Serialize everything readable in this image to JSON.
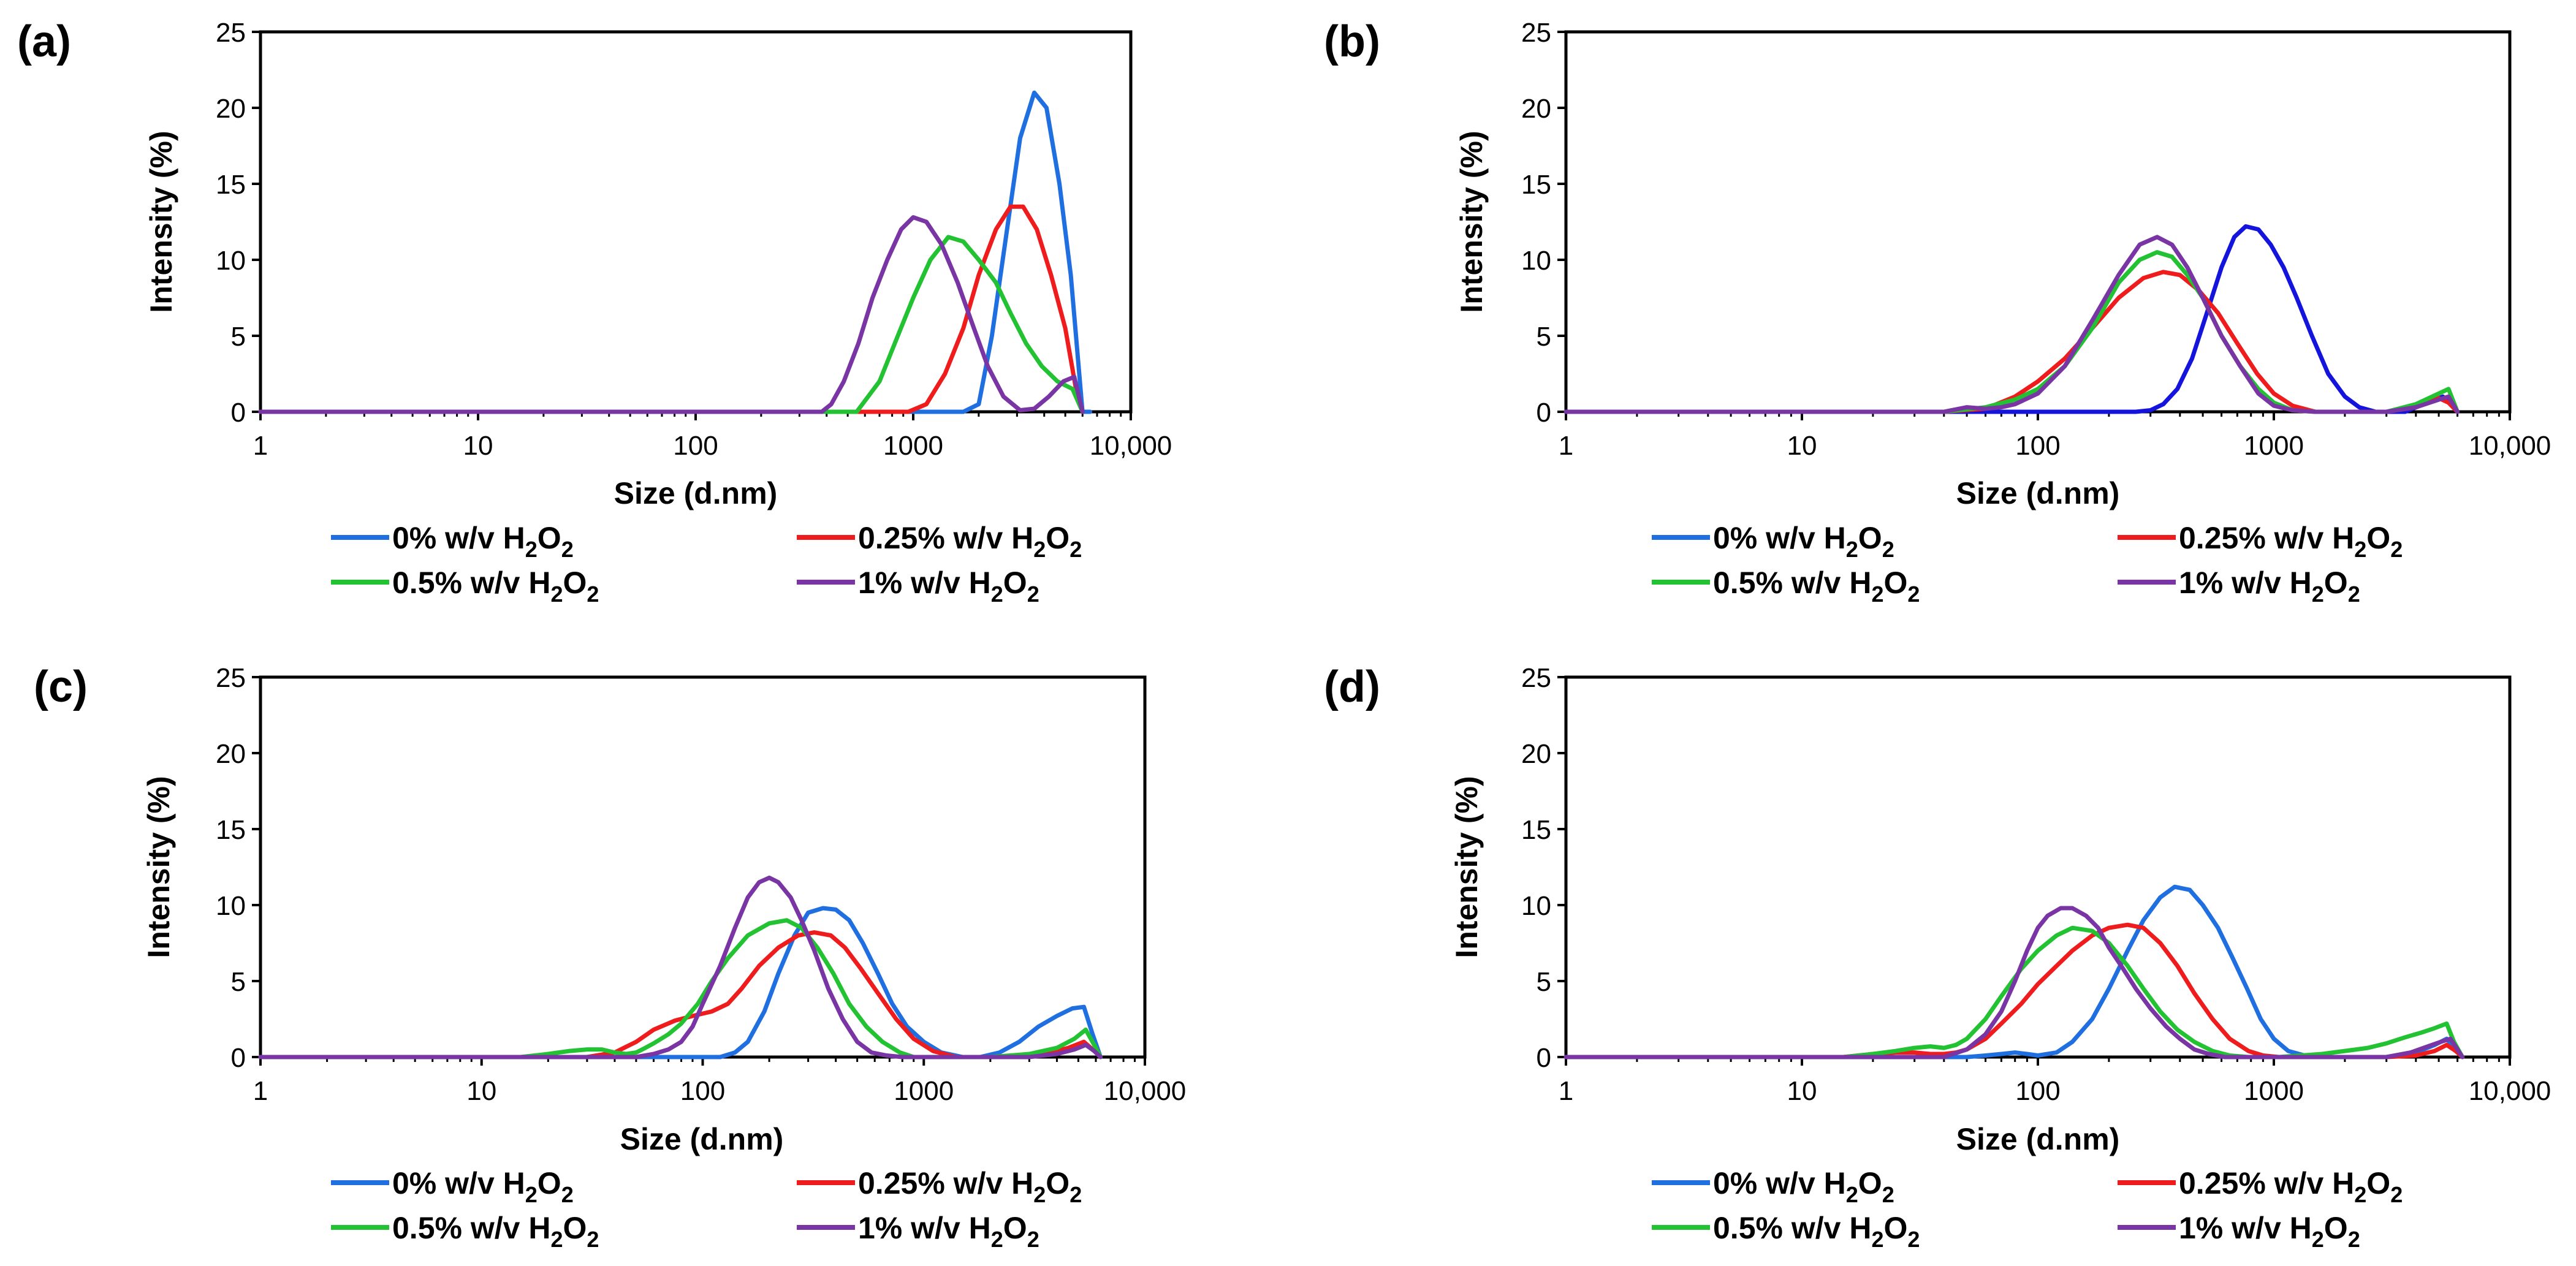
{
  "figure": {
    "legend_entries": [
      {
        "label": "0% w/v H",
        "sub1": "2",
        "mid": "O",
        "sub2": "2"
      },
      {
        "label": "0.25% w/v H",
        "sub1": "2",
        "mid": "O",
        "sub2": "2"
      },
      {
        "label": "0.5% w/v H",
        "sub1": "2",
        "mid": "O",
        "sub2": "2"
      },
      {
        "label": "1% w/v  H",
        "sub1": "2",
        "mid": "O",
        "sub2": "2"
      }
    ]
  },
  "chart_data": [
    {
      "panel": "(a)",
      "type": "line",
      "xscale": "log",
      "xlim": [
        1,
        10000
      ],
      "ylim": [
        0,
        25
      ],
      "xticks": [
        1,
        10,
        100,
        1000,
        10000
      ],
      "xtick_labels": [
        "1",
        "10",
        "100",
        "1000",
        "10,000"
      ],
      "yticks": [
        0,
        5,
        10,
        15,
        20,
        25
      ],
      "ytick_labels": [
        "0",
        "5",
        "10",
        "15",
        "20",
        "25"
      ],
      "xlabel": "Size (d.nm)",
      "ylabel": "Intensity (%)",
      "series": [
        {
          "name": "0% w/v H2O2",
          "color": "#1f6fe0",
          "x": [
            1,
            1700,
            2000,
            2300,
            2700,
            3100,
            3600,
            4100,
            4700,
            5300,
            6000,
            6500
          ],
          "y": [
            0,
            0,
            0.5,
            5,
            12,
            18,
            21,
            20,
            15,
            9,
            0,
            0
          ]
        },
        {
          "name": "0.25% w/v H2O2",
          "color": "#ee1c1c",
          "x": [
            1,
            950,
            1150,
            1400,
            1700,
            2000,
            2400,
            2800,
            3200,
            3700,
            4300,
            5000,
            5600,
            6000
          ],
          "y": [
            0,
            0,
            0.5,
            2.5,
            5.5,
            9,
            12,
            13.5,
            13.5,
            12,
            9,
            5.5,
            1.5,
            0
          ]
        },
        {
          "name": "0.5% w/v H2O2",
          "color": "#22c232",
          "x": [
            1,
            550,
            700,
            850,
            1000,
            1200,
            1450,
            1700,
            2000,
            2400,
            2800,
            3300,
            3900,
            4600,
            5400,
            6000
          ],
          "y": [
            0,
            0,
            2,
            5,
            7.5,
            10,
            11.5,
            11.2,
            10,
            8.5,
            6.5,
            4.5,
            3,
            2,
            1.5,
            0
          ]
        },
        {
          "name": "1% w/v H2O2",
          "color": "#7a35a5",
          "x": [
            1,
            380,
            420,
            480,
            560,
            650,
            760,
            880,
            1000,
            1150,
            1350,
            1600,
            1900,
            2200,
            2600,
            3100,
            3600,
            4200,
            4900,
            5500,
            6000
          ],
          "y": [
            0,
            0,
            0.5,
            2,
            4.5,
            7.5,
            10,
            12,
            12.8,
            12.5,
            11,
            8.5,
            5.5,
            3,
            1,
            0.1,
            0.2,
            1,
            2,
            2.3,
            0
          ]
        }
      ]
    },
    {
      "panel": "(b)",
      "type": "line",
      "xscale": "log",
      "xlim": [
        1,
        10000
      ],
      "ylim": [
        0,
        25
      ],
      "xticks": [
        1,
        10,
        100,
        1000,
        10000
      ],
      "xtick_labels": [
        "1",
        "10",
        "100",
        "1000",
        "10,000"
      ],
      "yticks": [
        0,
        5,
        10,
        15,
        20,
        25
      ],
      "ytick_labels": [
        "0",
        "5",
        "10",
        "15",
        "20",
        "25"
      ],
      "xlabel": "Size (d.nm)",
      "ylabel": "Intensity (%)",
      "series": [
        {
          "name": "0% w/v H2O2",
          "color": "#1414dc",
          "x": [
            1,
            260,
            300,
            340,
            390,
            450,
            520,
            600,
            680,
            760,
            860,
            970,
            1100,
            1250,
            1450,
            1700,
            2000,
            2300,
            2700,
            3100,
            3600,
            4300,
            5200,
            5700,
            6000
          ],
          "y": [
            0,
            0,
            0.1,
            0.5,
            1.5,
            3.5,
            6.5,
            9.5,
            11.5,
            12.2,
            12,
            11,
            9.5,
            7.5,
            5,
            2.5,
            1,
            0.3,
            0,
            0,
            0,
            0.5,
            1,
            0.5,
            0
          ]
        },
        {
          "name": "0.25% w/v H2O2",
          "color": "#ee1c1c",
          "x": [
            1,
            40,
            60,
            80,
            100,
            130,
            170,
            220,
            280,
            340,
            400,
            480,
            580,
            700,
            850,
            1000,
            1200,
            1500,
            2000,
            3000,
            4000,
            5000,
            5500,
            6000
          ],
          "y": [
            0,
            0,
            0.2,
            1,
            2,
            3.5,
            5.5,
            7.5,
            8.8,
            9.2,
            9,
            8,
            6.5,
            4.5,
            2.5,
            1.2,
            0.4,
            0,
            0,
            0,
            0.3,
            0.9,
            0.6,
            0
          ]
        },
        {
          "name": "0.5% w/v H2O2",
          "color": "#22c232",
          "x": [
            1,
            40,
            60,
            80,
            100,
            130,
            170,
            220,
            270,
            320,
            370,
            430,
            500,
            600,
            720,
            860,
            1000,
            1200,
            1500,
            2000,
            3000,
            4000,
            5000,
            5500,
            6000
          ],
          "y": [
            0,
            0,
            0.3,
            0.8,
            1.5,
            3,
            5.5,
            8.5,
            10,
            10.5,
            10.2,
            9,
            7.5,
            5,
            3,
            1.5,
            0.6,
            0.1,
            0,
            0,
            0,
            0.5,
            1.2,
            1.5,
            0
          ]
        },
        {
          "name": "1% w/v H2O2",
          "color": "#7a35a5",
          "x": [
            1,
            40,
            50,
            60,
            70,
            80,
            100,
            130,
            170,
            220,
            270,
            320,
            370,
            430,
            500,
            600,
            720,
            860,
            1000,
            1200,
            1500,
            2000,
            3000,
            4000,
            5000,
            5500,
            6000
          ],
          "y": [
            0,
            0,
            0.3,
            0.2,
            0.3,
            0.5,
            1.2,
            3,
            6,
            9,
            11,
            11.5,
            11,
            9.5,
            7.5,
            5,
            3,
            1.2,
            0.4,
            0.1,
            0,
            0,
            0,
            0.3,
            0.8,
            1,
            0
          ]
        }
      ]
    },
    {
      "panel": "(c)",
      "type": "line",
      "xscale": "log",
      "xlim": [
        1,
        10000
      ],
      "ylim": [
        0,
        25
      ],
      "xticks": [
        1,
        10,
        100,
        1000,
        10000
      ],
      "xtick_labels": [
        "1",
        "10",
        "100",
        "1000",
        "10,000"
      ],
      "yticks": [
        0,
        5,
        10,
        15,
        20,
        25
      ],
      "ytick_labels": [
        "0",
        "5",
        "10",
        "15",
        "20",
        "25"
      ],
      "xlabel": "Size (d.nm)",
      "ylabel": "Intensity (%)",
      "series": [
        {
          "name": "0% w/v H2O2",
          "color": "#1f6fe0",
          "x": [
            1,
            120,
            140,
            160,
            190,
            220,
            260,
            300,
            350,
            400,
            460,
            530,
            620,
            720,
            840,
            1000,
            1200,
            1500,
            1800,
            2200,
            2700,
            3300,
            4000,
            4700,
            5300,
            5800,
            6300
          ],
          "y": [
            0,
            0,
            0.3,
            1,
            3,
            5.5,
            8,
            9.5,
            9.8,
            9.7,
            9,
            7.5,
            5.5,
            3.5,
            2,
            1,
            0.3,
            0,
            0,
            0.3,
            1,
            2,
            2.7,
            3.2,
            3.3,
            1.5,
            0
          ]
        },
        {
          "name": "0.25% w/v H2O2",
          "color": "#ee1c1c",
          "x": [
            1,
            30,
            40,
            50,
            60,
            75,
            90,
            110,
            130,
            150,
            180,
            220,
            270,
            320,
            380,
            440,
            520,
            620,
            750,
            900,
            1100,
            1400,
            1800,
            2500,
            3500,
            4500,
            5300,
            5800,
            6300
          ],
          "y": [
            0,
            0,
            0.3,
            1,
            1.8,
            2.4,
            2.7,
            3,
            3.5,
            4.5,
            6,
            7.2,
            8,
            8.2,
            8,
            7.2,
            5.8,
            4.2,
            2.5,
            1.2,
            0.4,
            0,
            0,
            0,
            0.2,
            0.6,
            1,
            0.5,
            0
          ]
        },
        {
          "name": "0.5% w/v H2O2",
          "color": "#22c232",
          "x": [
            1,
            15,
            20,
            25,
            30,
            35,
            40,
            45,
            50,
            55,
            60,
            70,
            80,
            95,
            110,
            130,
            160,
            200,
            240,
            280,
            330,
            390,
            460,
            550,
            650,
            780,
            900,
            1050,
            1300,
            2000,
            3000,
            4000,
            4800,
            5400,
            5900,
            6300
          ],
          "y": [
            0,
            0,
            0.2,
            0.4,
            0.5,
            0.5,
            0.3,
            0.2,
            0.3,
            0.6,
            0.9,
            1.5,
            2.2,
            3.5,
            5,
            6.5,
            8,
            8.8,
            9,
            8.5,
            7.2,
            5.5,
            3.5,
            2,
            1,
            0.3,
            0,
            0,
            0,
            0,
            0.2,
            0.6,
            1.2,
            1.8,
            0.8,
            0
          ]
        },
        {
          "name": "1% w/v H2O2",
          "color": "#7a35a5",
          "x": [
            1,
            50,
            60,
            70,
            80,
            90,
            100,
            120,
            140,
            160,
            180,
            200,
            220,
            250,
            280,
            320,
            370,
            430,
            500,
            580,
            680,
            800,
            1000,
            2000,
            3000,
            4000,
            4800,
            5400,
            5900,
            6300
          ],
          "y": [
            0,
            0,
            0.2,
            0.5,
            1,
            2,
            3.5,
            6,
            8.5,
            10.5,
            11.5,
            11.8,
            11.5,
            10.5,
            9,
            7,
            4.5,
            2.5,
            1,
            0.3,
            0.1,
            0,
            0,
            0,
            0,
            0.2,
            0.5,
            0.8,
            0.4,
            0
          ]
        }
      ]
    },
    {
      "panel": "(d)",
      "type": "line",
      "xscale": "log",
      "xlim": [
        1,
        10000
      ],
      "ylim": [
        0,
        25
      ],
      "xticks": [
        1,
        10,
        100,
        1000,
        10000
      ],
      "xtick_labels": [
        "1",
        "10",
        "100",
        "1000",
        "10,000"
      ],
      "yticks": [
        0,
        5,
        10,
        15,
        20,
        25
      ],
      "ytick_labels": [
        "0",
        "5",
        "10",
        "15",
        "20",
        "25"
      ],
      "xlabel": "Size (d.nm)",
      "ylabel": "Intensity (%)",
      "series": [
        {
          "name": "0% w/v H2O2",
          "color": "#1f6fe0",
          "x": [
            1,
            50,
            60,
            70,
            80,
            90,
            100,
            120,
            140,
            170,
            200,
            240,
            280,
            330,
            380,
            440,
            500,
            580,
            670,
            770,
            880,
            1000,
            1150,
            1350,
            1600,
            2000,
            3000,
            4000,
            4800,
            5400,
            5900,
            6300
          ],
          "y": [
            0,
            0,
            0.1,
            0.2,
            0.3,
            0.2,
            0.1,
            0.3,
            1,
            2.5,
            4.5,
            7,
            9,
            10.5,
            11.2,
            11,
            10,
            8.5,
            6.5,
            4.5,
            2.5,
            1.2,
            0.4,
            0.1,
            0,
            0,
            0,
            0.3,
            0.8,
            1.2,
            0.5,
            0
          ]
        },
        {
          "name": "0.25% w/v H2O2",
          "color": "#ee1c1c",
          "x": [
            1,
            15,
            20,
            25,
            30,
            35,
            40,
            45,
            50,
            60,
            70,
            85,
            100,
            120,
            140,
            170,
            200,
            240,
            280,
            330,
            390,
            460,
            550,
            650,
            780,
            900,
            1050,
            1300,
            2000,
            3000,
            4000,
            4800,
            5400,
            5900,
            6300
          ],
          "y": [
            0,
            0,
            0.2,
            0.3,
            0.3,
            0.2,
            0.2,
            0.3,
            0.5,
            1.2,
            2.2,
            3.5,
            4.8,
            6,
            7,
            8,
            8.5,
            8.7,
            8.5,
            7.5,
            6,
            4.2,
            2.5,
            1.2,
            0.4,
            0.1,
            0,
            0,
            0,
            0,
            0.1,
            0.4,
            0.8,
            0.4,
            0
          ]
        },
        {
          "name": "0.5% w/v H2O2",
          "color": "#22c232",
          "x": [
            1,
            15,
            20,
            25,
            30,
            35,
            40,
            45,
            50,
            60,
            70,
            85,
            100,
            120,
            140,
            170,
            200,
            240,
            280,
            330,
            390,
            460,
            550,
            650,
            780,
            900,
            1050,
            1300,
            1600,
            2000,
            2500,
            3000,
            3600,
            4200,
            4800,
            5400,
            5800,
            6300
          ],
          "y": [
            0,
            0,
            0.2,
            0.4,
            0.6,
            0.7,
            0.6,
            0.8,
            1.2,
            2.5,
            4,
            5.8,
            7,
            8,
            8.5,
            8.3,
            7.5,
            6,
            4.5,
            3,
            1.8,
            1,
            0.4,
            0.1,
            0,
            0,
            0,
            0.1,
            0.2,
            0.4,
            0.6,
            0.9,
            1.3,
            1.6,
            1.9,
            2.2,
            1,
            0
          ]
        },
        {
          "name": "1% w/v H2O2",
          "color": "#7a35a5",
          "x": [
            1,
            40,
            50,
            60,
            70,
            80,
            90,
            100,
            110,
            125,
            140,
            160,
            180,
            200,
            230,
            260,
            300,
            350,
            400,
            460,
            530,
            620,
            720,
            850,
            1000,
            1300,
            2000,
            3000,
            3800,
            4500,
            5100,
            5600,
            6000,
            6300
          ],
          "y": [
            0,
            0,
            0.5,
            1.5,
            3,
            5,
            7,
            8.5,
            9.3,
            9.8,
            9.8,
            9.3,
            8.5,
            7.2,
            5.8,
            4.5,
            3.2,
            2,
            1.2,
            0.5,
            0.2,
            0,
            0,
            0,
            0,
            0,
            0,
            0,
            0.3,
            0.7,
            1,
            1.2,
            0.5,
            0
          ]
        }
      ]
    }
  ]
}
